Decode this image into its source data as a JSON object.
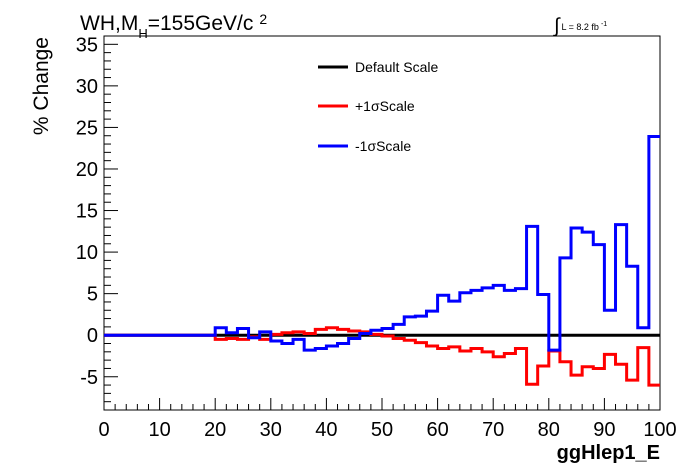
{
  "page": {
    "title_main": "WH,M",
    "title_sub": "H",
    "title_rest": "=155GeV/c",
    "title_sup": "2",
    "lumi_integral": "∫",
    "lumi_text": "L = 8.2 fb",
    "lumi_sup": "-1"
  },
  "chart_data": {
    "type": "line",
    "style": "histogram-step",
    "ylabel": "% Change",
    "xlabel": "ggHlep1_E",
    "xlim": [
      0,
      100
    ],
    "ylim": [
      -9,
      36
    ],
    "xticks": [
      0,
      10,
      20,
      30,
      40,
      50,
      60,
      70,
      80,
      90,
      100
    ],
    "yticks": [
      -5,
      0,
      5,
      10,
      15,
      20,
      25,
      30,
      35
    ],
    "bin_edges": [
      0,
      2,
      4,
      6,
      8,
      10,
      12,
      14,
      16,
      18,
      20,
      22,
      24,
      26,
      28,
      30,
      32,
      34,
      36,
      38,
      40,
      42,
      44,
      46,
      48,
      50,
      52,
      54,
      56,
      58,
      60,
      62,
      64,
      66,
      68,
      70,
      72,
      74,
      76,
      78,
      80,
      82,
      84,
      86,
      88,
      90,
      92,
      94,
      96,
      98,
      100
    ],
    "legend": {
      "position": "top-center"
    },
    "series": [
      {
        "name": "Default Scale",
        "color": "#000000",
        "values": [
          0,
          0,
          0,
          0,
          0,
          0,
          0,
          0,
          0,
          0,
          0,
          0,
          0,
          0,
          0,
          0,
          0,
          0,
          0,
          0,
          0,
          0,
          0,
          0,
          0,
          0,
          0,
          0,
          0,
          0,
          0,
          0,
          0,
          0,
          0,
          0,
          0,
          0,
          0,
          0,
          0,
          0,
          0,
          0,
          0,
          0,
          0,
          0,
          0,
          0
        ]
      },
      {
        "name": "+1σScale",
        "color": "#ff0000",
        "values": [
          0,
          0,
          0,
          0,
          0,
          0,
          0,
          0,
          0,
          0,
          -0.5,
          -0.4,
          -0.5,
          -0.2,
          -0.5,
          0.1,
          0.3,
          0.4,
          0.2,
          0.7,
          0.9,
          0.7,
          0.5,
          0.4,
          0.1,
          -0.1,
          -0.4,
          -0.6,
          -0.9,
          -1.3,
          -1.6,
          -1.4,
          -1.9,
          -1.6,
          -2.0,
          -2.6,
          -2.2,
          -1.6,
          -5.9,
          -3.7,
          -1.9,
          -3.2,
          -4.8,
          -3.8,
          -4.0,
          -2.3,
          -3.5,
          -5.4,
          -1.5,
          -6.0
        ]
      },
      {
        "name": "-1σScale",
        "color": "#0000ff",
        "values": [
          0,
          0,
          0,
          0,
          0,
          0,
          0,
          0,
          0,
          0,
          0.9,
          0.3,
          0.8,
          -0.3,
          0.4,
          -0.7,
          -1.0,
          -0.5,
          -1.8,
          -1.6,
          -1.3,
          -1.0,
          -0.4,
          0.2,
          0.6,
          0.8,
          1.3,
          2.2,
          2.3,
          2.9,
          4.8,
          4.1,
          5.1,
          5.4,
          5.7,
          6.0,
          5.4,
          5.6,
          13.1,
          4.9,
          -1.8,
          9.3,
          12.9,
          12.4,
          10.9,
          3.0,
          13.3,
          8.3,
          0.9,
          23.9
        ]
      }
    ]
  }
}
